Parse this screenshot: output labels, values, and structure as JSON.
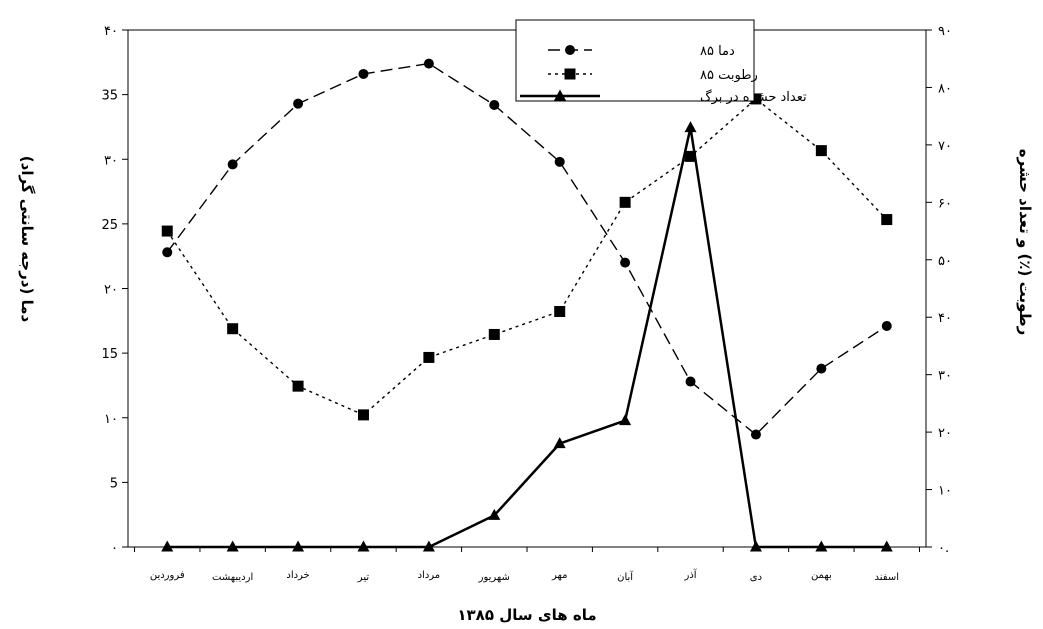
{
  "chart_data": {
    "type": "line",
    "xlabel": "ماه های سال ۱۳۸۵",
    "ylabel_left": "دما (درجه سانتی گراد)",
    "ylabel_right": "رطوبت (٪) و تعداد حشره",
    "categories": [
      "فروردین",
      "اردیبهشت",
      "خرداد",
      "تیر",
      "مرداد",
      "شهریور",
      "مهر",
      "آبان",
      "آذر",
      "دی",
      "بهمن",
      "اسفند"
    ],
    "left_axis": {
      "ylim": [
        0,
        40
      ],
      "ticks": [
        0,
        5,
        10,
        15,
        20,
        25,
        30,
        35,
        40
      ],
      "tick_labels": [
        "۰",
        "5",
        "۱۰",
        "15",
        "۲۰",
        "25",
        "۳۰",
        "35",
        "۴۰"
      ]
    },
    "right_axis": {
      "ylim": [
        0,
        90
      ],
      "ticks": [
        0,
        10,
        20,
        30,
        40,
        50,
        60,
        70,
        80,
        90
      ],
      "tick_labels": [
        "۰.",
        "۱۰",
        "۲۰",
        "۳۰",
        "۴۰",
        "۵۰",
        "۶۰",
        "۷۰",
        "۸۰",
        "۹۰"
      ]
    },
    "series": [
      {
        "name": "دما ۸۵",
        "axis": "left",
        "marker": "circle",
        "dash": "long-dash",
        "values": [
          22.8,
          29.6,
          34.3,
          36.6,
          37.4,
          34.2,
          29.8,
          22.0,
          12.8,
          8.7,
          13.8,
          17.1
        ]
      },
      {
        "name": "رطوبت ۸۵",
        "axis": "right",
        "marker": "square",
        "dash": "dotted",
        "values": [
          55,
          38,
          28,
          23,
          33,
          37,
          41,
          60,
          68,
          78,
          69,
          57
        ]
      },
      {
        "name": "تعداد حشره در برگ",
        "axis": "right",
        "marker": "triangle",
        "dash": "solid",
        "values": [
          0,
          0,
          0,
          0,
          0,
          5.5,
          18,
          22,
          73,
          0,
          0,
          0
        ]
      }
    ],
    "legend_position": "top-right",
    "grid": false
  }
}
